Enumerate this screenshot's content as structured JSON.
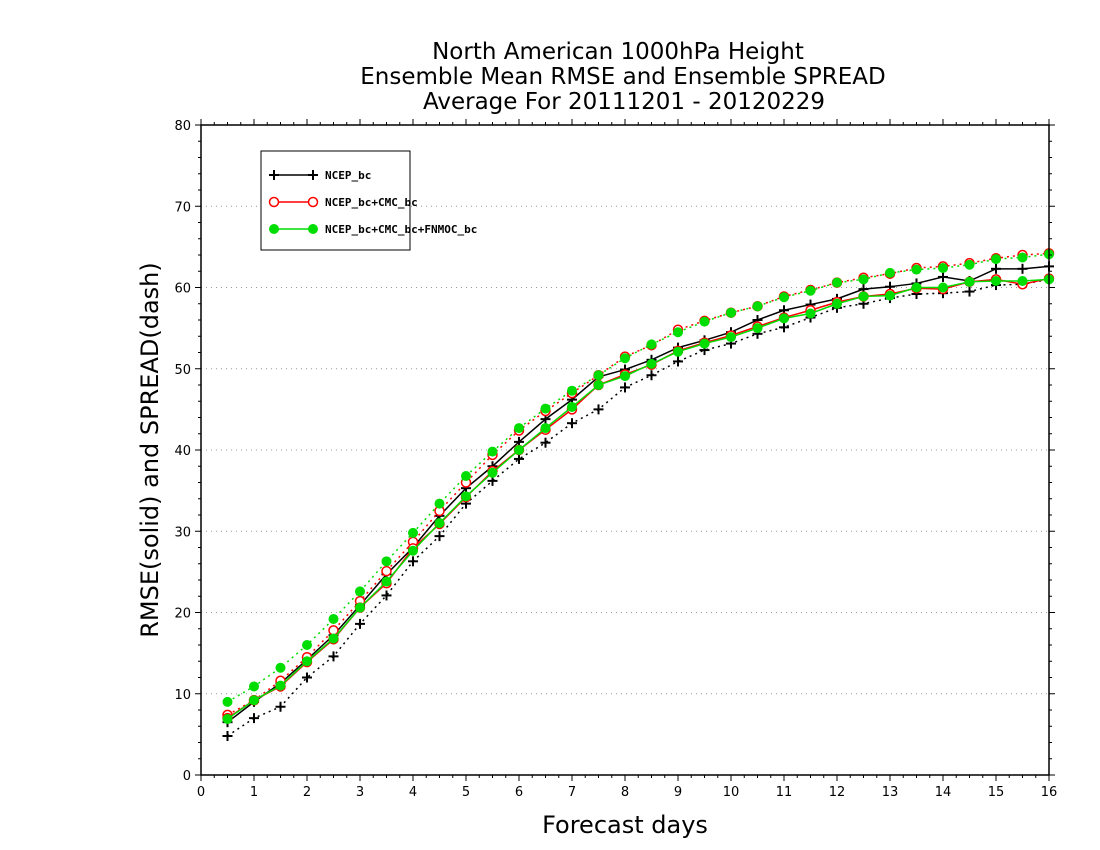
{
  "chart_data": {
    "type": "line",
    "title": "North American 1000hPa Height",
    "subtitle_lines": [
      "Ensemble Mean RMSE and Ensemble SPREAD",
      "Average For 20111201 - 20120229"
    ],
    "xlabel": "Forecast days",
    "ylabel": "RMSE(solid) and SPREAD(dash)",
    "xlim": [
      0,
      16
    ],
    "ylim": [
      0,
      80
    ],
    "x_ticks": [
      0,
      1,
      2,
      3,
      4,
      5,
      6,
      7,
      8,
      9,
      10,
      11,
      12,
      13,
      14,
      15,
      16
    ],
    "y_ticks": [
      0,
      10,
      20,
      30,
      40,
      50,
      60,
      70,
      80
    ],
    "grid": "horizontal dotted",
    "legend_position": "top-left",
    "x": [
      0.5,
      1,
      1.5,
      2,
      2.5,
      3,
      3.5,
      4,
      4.5,
      5,
      5.5,
      6,
      6.5,
      7,
      7.5,
      8,
      8.5,
      9,
      9.5,
      10,
      10.5,
      11,
      11.5,
      12,
      12.5,
      13,
      13.5,
      14,
      14.5,
      15,
      15.5,
      16
    ],
    "series": [
      {
        "legend_text": "NCEP_bc",
        "color": "#000000",
        "marker": "plus",
        "rmse": [
          6.5,
          9.0,
          11.3,
          14.2,
          17.2,
          20.9,
          24.7,
          28.0,
          31.9,
          35.3,
          38.0,
          41.0,
          43.8,
          46.2,
          49.0,
          49.9,
          51.1,
          52.6,
          53.5,
          54.5,
          56.0,
          57.2,
          57.9,
          58.6,
          59.8,
          60.1,
          60.5,
          61.3,
          60.8,
          62.3,
          62.3,
          62.6
        ],
        "spread": [
          4.8,
          7.0,
          8.4,
          12.0,
          14.6,
          18.6,
          22.1,
          26.3,
          29.4,
          33.4,
          36.2,
          38.9,
          40.9,
          43.3,
          45.0,
          47.7,
          49.2,
          50.9,
          52.3,
          53.1,
          54.3,
          55.1,
          56.3,
          57.5,
          58.0,
          58.7,
          59.2,
          59.3,
          59.5,
          60.3,
          60.4,
          61.0
        ]
      },
      {
        "legend_text": "NCEP_bc+CMC_bc",
        "color": "#ff0000",
        "marker": "open-circle",
        "rmse": [
          7.0,
          9.2,
          10.9,
          13.9,
          16.7,
          20.6,
          23.6,
          27.9,
          30.9,
          34.2,
          37.4,
          40.0,
          42.5,
          45.0,
          48.0,
          49.3,
          50.5,
          52.2,
          53.2,
          54.1,
          55.2,
          56.3,
          57.2,
          58.2,
          58.9,
          59.2,
          59.9,
          59.8,
          60.7,
          61.0,
          60.4,
          61.1
        ],
        "spread": [
          7.4,
          9.2,
          11.6,
          14.5,
          17.8,
          21.4,
          25.1,
          28.7,
          32.5,
          36.0,
          39.4,
          42.4,
          44.8,
          47.0,
          49.2,
          51.5,
          52.9,
          54.8,
          55.9,
          56.9,
          57.7,
          58.9,
          59.7,
          60.6,
          61.2,
          61.7,
          62.4,
          62.6,
          63.0,
          63.6,
          64.0,
          64.2
        ]
      },
      {
        "legend_text": "NCEP_bc+CMC_bc+FNMOC_bc",
        "color": "#00dd00",
        "marker": "filled-circle",
        "rmse": [
          6.9,
          9.2,
          11.0,
          14.0,
          16.8,
          20.6,
          23.8,
          27.6,
          31.0,
          34.3,
          37.2,
          40.0,
          42.7,
          45.3,
          48.0,
          49.1,
          50.6,
          52.1,
          53.1,
          53.9,
          55.0,
          56.2,
          56.8,
          58.0,
          58.9,
          59.0,
          60.0,
          60.0,
          60.7,
          60.8,
          60.8,
          61.0
        ],
        "spread": [
          9.0,
          10.9,
          13.2,
          16.0,
          19.2,
          22.6,
          26.3,
          29.8,
          33.4,
          36.8,
          39.8,
          42.7,
          45.1,
          47.3,
          49.2,
          51.3,
          53.0,
          54.5,
          55.8,
          56.9,
          57.7,
          58.8,
          59.6,
          60.6,
          61.0,
          61.8,
          62.2,
          62.4,
          62.8,
          63.5,
          63.7,
          64.1
        ]
      }
    ]
  }
}
